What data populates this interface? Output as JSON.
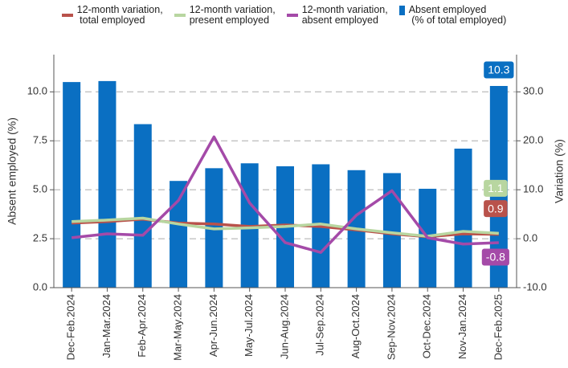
{
  "chart_data": {
    "type": "bar",
    "ylabel": "Absent employed (%)",
    "y2label": "Variation (%)",
    "categories": [
      "Dec-Feb.2024",
      "Jan-Mar.2024",
      "Feb-Apr.2024",
      "Mar-May.2024",
      "Apr-Jun.2024",
      "May-Jul.2024",
      "Jun-Aug.2024",
      "Jul-Sep.2024",
      "Aug-Oct.2024",
      "Sep-Nov.2024",
      "Oct-Dec.2024",
      "Nov-Jan.2024",
      "Dec-Feb.2025"
    ],
    "ylim": [
      0,
      11.9
    ],
    "yticks": [
      {
        "value": 0,
        "label": "0.0"
      },
      2.5,
      {
        "value": 5,
        "label": "5.0"
      },
      7.5,
      {
        "value": 10,
        "label": "10.0"
      }
    ],
    "y2lim": [
      -10,
      37.6
    ],
    "y2ticks": [
      {
        "value": -10,
        "label": "-10.0"
      },
      {
        "value": 0,
        "label": "0.0"
      },
      {
        "value": 10,
        "label": "10.0"
      },
      {
        "value": 20,
        "label": "20.0"
      },
      {
        "value": 30,
        "label": "30.0"
      }
    ],
    "grid": true,
    "series": [
      {
        "name": "12-month variation,\n total employed",
        "type": "line",
        "axis": "y2",
        "color": "#b9524b",
        "values": [
          3.2,
          3.5,
          4.0,
          3.2,
          3.0,
          2.5,
          2.8,
          2.5,
          1.8,
          1.0,
          0.4,
          1.0,
          0.9
        ]
      },
      {
        "name": "12-month variation,\npresent employed",
        "type": "line",
        "axis": "y2",
        "color": "#b8d6a0",
        "values": [
          3.5,
          3.8,
          4.2,
          3.0,
          2.0,
          2.2,
          2.5,
          3.0,
          2.0,
          1.2,
          0.5,
          1.5,
          1.1
        ]
      },
      {
        "name": "12-month variation,\nabsent employed",
        "type": "line",
        "axis": "y2",
        "color": "#a44aa8",
        "values": [
          0.2,
          1.0,
          0.7,
          7.8,
          20.8,
          7.3,
          -0.8,
          -2.8,
          4.8,
          9.8,
          0.2,
          -1.1,
          -0.8
        ]
      },
      {
        "name": "Absent employed\n (% of total employed)",
        "type": "bar",
        "axis": "y",
        "color": "#0a6fc2",
        "values": [
          10.5,
          10.55,
          8.35,
          5.45,
          6.1,
          6.35,
          6.2,
          6.3,
          6.0,
          5.85,
          5.05,
          7.1,
          10.3
        ]
      }
    ]
  }
}
